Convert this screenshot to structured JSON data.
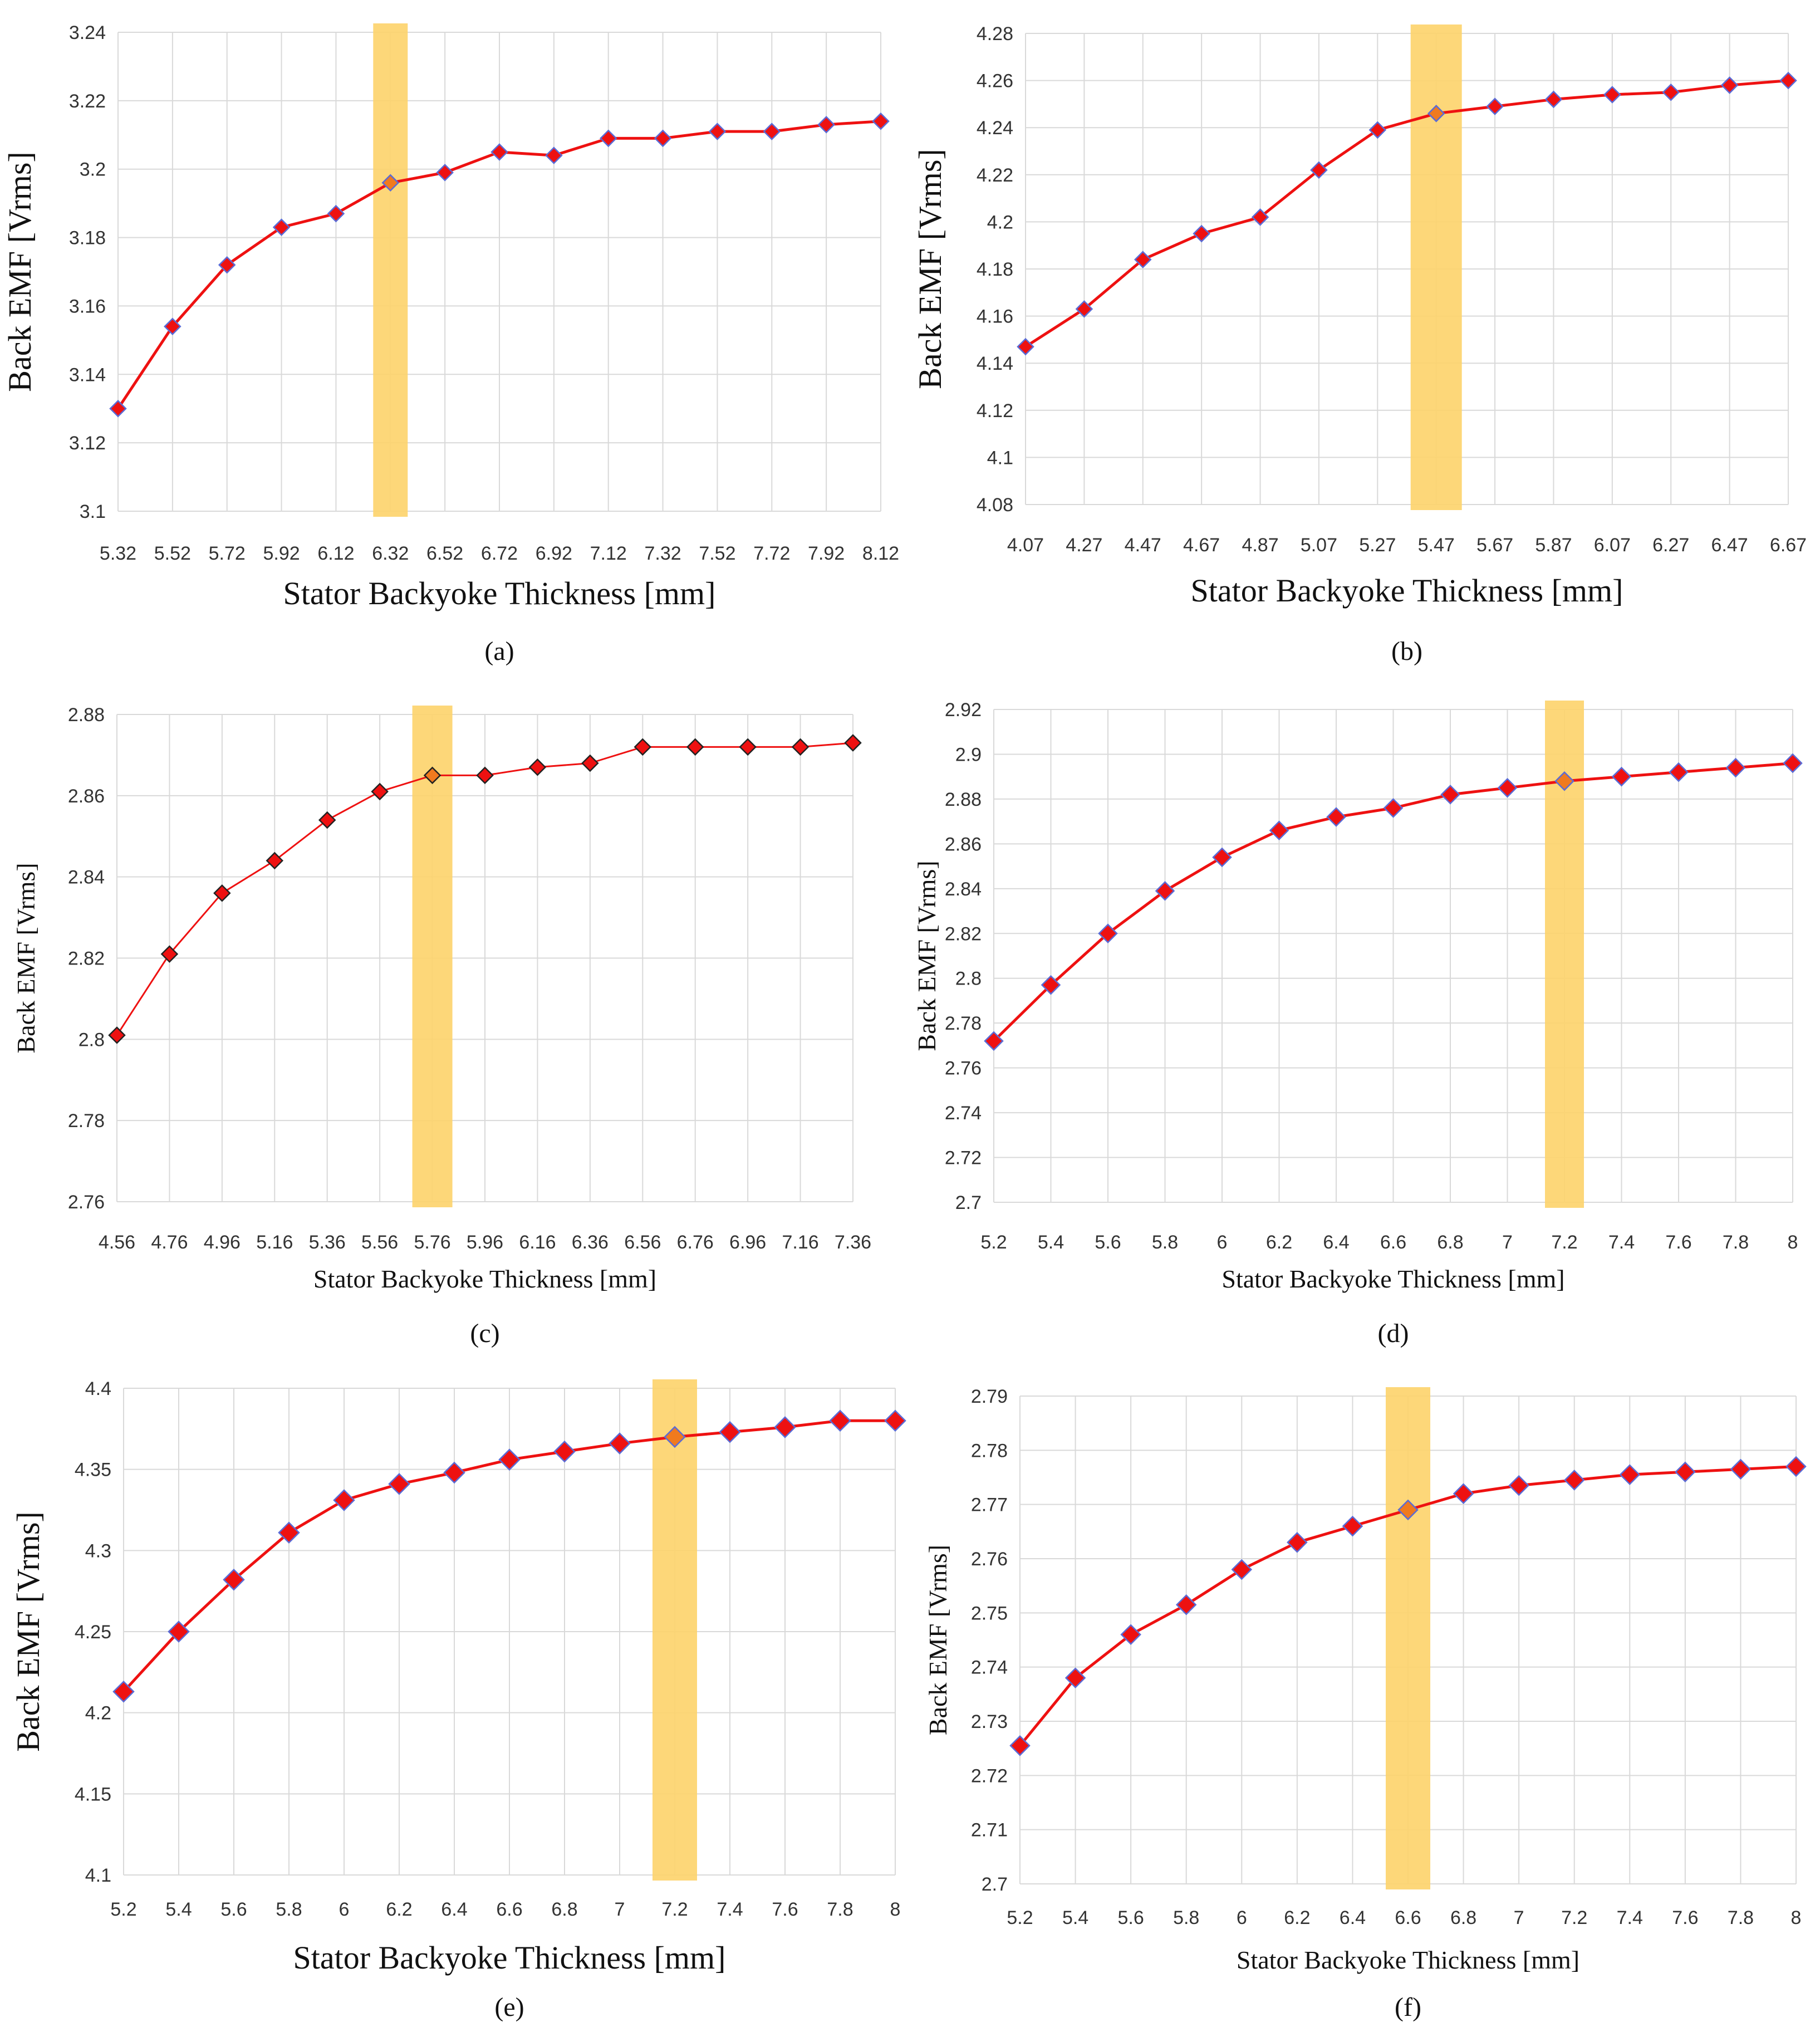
{
  "figure": {
    "colors": {
      "line": "#ee1111",
      "marker": "#ee1111",
      "marker_edge": "#5a6bd6",
      "highlight": "#fdd36a",
      "grid": "#d9d9d9"
    }
  },
  "chart_data": [
    {
      "id": "a",
      "type": "line",
      "caption": "(a)",
      "xlabel": "Stator Backyoke Thickness [mm]",
      "ylabel": "Back EMF [Vrms]",
      "x": [
        5.32,
        5.52,
        5.72,
        5.92,
        6.12,
        6.32,
        6.52,
        6.72,
        6.92,
        7.12,
        7.32,
        7.52,
        7.72,
        7.92,
        8.12
      ],
      "x_tick_labels": [
        "5.32",
        "5.52",
        "5.72",
        "5.92",
        "6.12",
        "6.32",
        "6.52",
        "6.72",
        "6.92",
        "7.12",
        "7.32",
        "7.52",
        "7.72",
        "7.92",
        "8.12"
      ],
      "values": [
        3.13,
        3.154,
        3.172,
        3.183,
        3.187,
        3.196,
        3.199,
        3.205,
        3.204,
        3.209,
        3.209,
        3.211,
        3.211,
        3.213,
        3.214
      ],
      "ylim": [
        3.1,
        3.24
      ],
      "y_tick_labels": [
        "3.1",
        "3.12",
        "3.14",
        "3.16",
        "3.18",
        "3.2",
        "3.22",
        "3.24"
      ],
      "highlight_x": 6.32,
      "grid": true
    },
    {
      "id": "b",
      "type": "line",
      "caption": "(b)",
      "xlabel": "Stator Backyoke Thickness [mm]",
      "ylabel": "Back EMF [Vrms]",
      "x": [
        4.07,
        4.27,
        4.47,
        4.67,
        4.87,
        5.07,
        5.27,
        5.47,
        5.67,
        5.87,
        6.07,
        6.27,
        6.47,
        6.67
      ],
      "x_tick_labels": [
        "4.07",
        "4.27",
        "4.47",
        "4.67",
        "4.87",
        "5.07",
        "5.27",
        "5.47",
        "5.67",
        "5.87",
        "6.07",
        "6.27",
        "6.47",
        "6.67"
      ],
      "values": [
        4.147,
        4.163,
        4.184,
        4.195,
        4.202,
        4.222,
        4.239,
        4.246,
        4.249,
        4.252,
        4.254,
        4.255,
        4.258,
        4.26
      ],
      "ylim": [
        4.08,
        4.28
      ],
      "y_tick_labels": [
        "4.08",
        "4.1",
        "4.12",
        "4.14",
        "4.16",
        "4.18",
        "4.2",
        "4.22",
        "4.24",
        "4.26",
        "4.28"
      ],
      "highlight_x": 5.47,
      "grid": true
    },
    {
      "id": "c",
      "type": "line",
      "caption": "(c)",
      "xlabel": "Stator Backyoke Thickness [mm]",
      "ylabel": "Back EMF [Vrms]",
      "x": [
        4.56,
        4.76,
        4.96,
        5.16,
        5.36,
        5.56,
        5.76,
        5.96,
        6.16,
        6.36,
        6.56,
        6.76,
        6.96,
        7.16,
        7.36
      ],
      "x_tick_labels": [
        "4.56",
        "4.76",
        "4.96",
        "5.16",
        "5.36",
        "5.56",
        "5.76",
        "5.96",
        "6.16",
        "6.36",
        "6.56",
        "6.76",
        "6.96",
        "7.16",
        "7.36"
      ],
      "values": [
        2.801,
        2.821,
        2.836,
        2.844,
        2.854,
        2.861,
        2.865,
        2.865,
        2.867,
        2.868,
        2.872,
        2.872,
        2.872,
        2.872,
        2.873
      ],
      "ylim": [
        2.76,
        2.88
      ],
      "y_tick_labels": [
        "2.76",
        "2.78",
        "2.8",
        "2.82",
        "2.84",
        "2.86",
        "2.88"
      ],
      "highlight_x": 5.76,
      "grid": true
    },
    {
      "id": "d",
      "type": "line",
      "caption": "(d)",
      "xlabel": "Stator Backyoke Thickness [mm]",
      "ylabel": "Back EMF [Vrms]",
      "x": [
        5.2,
        5.4,
        5.6,
        5.8,
        6,
        6.2,
        6.4,
        6.6,
        6.8,
        7,
        7.2,
        7.4,
        7.6,
        7.8,
        8
      ],
      "x_tick_labels": [
        "5.2",
        "5.4",
        "5.6",
        "5.8",
        "6",
        "6.2",
        "6.4",
        "6.6",
        "6.8",
        "7",
        "7.2",
        "7.4",
        "7.6",
        "7.8",
        "8"
      ],
      "values": [
        2.772,
        2.797,
        2.82,
        2.839,
        2.854,
        2.866,
        2.872,
        2.876,
        2.882,
        2.885,
        2.888,
        2.89,
        2.892,
        2.894,
        2.896
      ],
      "ylim": [
        2.7,
        2.92
      ],
      "y_tick_labels": [
        "2.7",
        "2.72",
        "2.74",
        "2.76",
        "2.78",
        "2.8",
        "2.82",
        "2.84",
        "2.86",
        "2.88",
        "2.9",
        "2.92"
      ],
      "highlight_x": 7.2,
      "grid": true
    },
    {
      "id": "e",
      "type": "line",
      "caption": "(e)",
      "xlabel": "Stator Backyoke Thickness [mm]",
      "ylabel": "Back EMF [Vrms]",
      "x": [
        5.2,
        5.4,
        5.6,
        5.8,
        6,
        6.2,
        6.4,
        6.6,
        6.8,
        7,
        7.2,
        7.4,
        7.6,
        7.8,
        8
      ],
      "x_tick_labels": [
        "5.2",
        "5.4",
        "5.6",
        "5.8",
        "6",
        "6.2",
        "6.4",
        "6.6",
        "6.8",
        "7",
        "7.2",
        "7.4",
        "7.6",
        "7.8",
        "8"
      ],
      "values": [
        4.213,
        4.25,
        4.282,
        4.311,
        4.331,
        4.341,
        4.348,
        4.356,
        4.361,
        4.366,
        4.37,
        4.373,
        4.376,
        4.38,
        4.38
      ],
      "ylim": [
        4.1,
        4.4
      ],
      "y_tick_labels": [
        "4.1",
        "4.15",
        "4.2",
        "4.25",
        "4.3",
        "4.35",
        "4.4"
      ],
      "highlight_x": 7.2,
      "grid": true
    },
    {
      "id": "f",
      "type": "line",
      "caption": "(f)",
      "xlabel": "Stator Backyoke Thickness [mm]",
      "ylabel": "Back EMF [Vrms]",
      "x": [
        5.2,
        5.4,
        5.6,
        5.8,
        6,
        6.2,
        6.4,
        6.6,
        6.8,
        7,
        7.2,
        7.4,
        7.6,
        7.8,
        8
      ],
      "x_tick_labels": [
        "5.2",
        "5.4",
        "5.6",
        "5.8",
        "6",
        "6.2",
        "6.4",
        "6.6",
        "6.8",
        "7",
        "7.2",
        "7.4",
        "7.6",
        "7.8",
        "8"
      ],
      "values": [
        2.7255,
        2.738,
        2.746,
        2.7515,
        2.758,
        2.763,
        2.766,
        2.769,
        2.772,
        2.7735,
        2.7745,
        2.7755,
        2.776,
        2.7765,
        2.777
      ],
      "ylim": [
        2.7,
        2.79
      ],
      "y_tick_labels": [
        "2.7",
        "2.71",
        "2.72",
        "2.73",
        "2.74",
        "2.75",
        "2.76",
        "2.77",
        "2.78",
        "2.79"
      ],
      "highlight_x": 6.6,
      "grid": true
    }
  ]
}
